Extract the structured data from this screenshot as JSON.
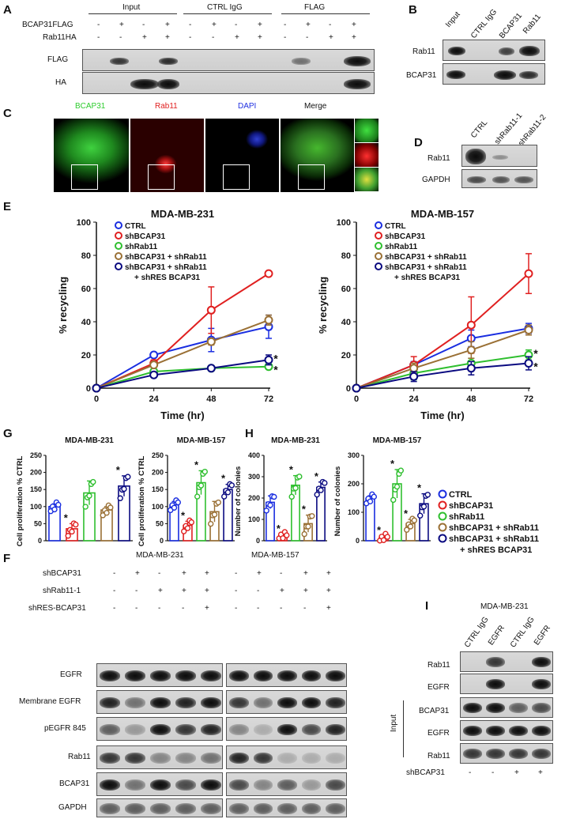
{
  "panel_letters": {
    "A": "A",
    "B": "B",
    "C": "C",
    "D": "D",
    "E": "E",
    "G": "G",
    "H": "H",
    "F": "F",
    "I": "I"
  },
  "panelA": {
    "groups": [
      "Input",
      "CTRL IgG",
      "FLAG"
    ],
    "row_labels": [
      "BCAP31FLAG",
      "Rab11HA"
    ],
    "bcap_signs": [
      "-",
      "+",
      "-",
      "+",
      "-",
      "+",
      "-",
      "+",
      "-",
      "+",
      "-",
      "+"
    ],
    "rab_signs": [
      "-",
      "-",
      "+",
      "+",
      "-",
      "-",
      "+",
      "+",
      "-",
      "-",
      "+",
      "+"
    ],
    "blot_labels": [
      "FLAG",
      "HA"
    ]
  },
  "panelB": {
    "lanes": [
      "Input",
      "CTRL IgG",
      "BCAP31",
      "Rab11"
    ],
    "blot_labels": [
      "Rab11",
      "BCAP31"
    ]
  },
  "panelC": {
    "channels": [
      "BCAP31",
      "Rab11",
      "DAPI",
      "Merge"
    ],
    "colors": [
      "#2ecc2e",
      "#e02020",
      "#2030e0",
      "#ffffff"
    ]
  },
  "panelD": {
    "lanes": [
      "CTRL",
      "shRab11-1",
      "shRab11-2"
    ],
    "blot_labels": [
      "Rab11",
      "GAPDH"
    ]
  },
  "legend_E": [
    "CTRL",
    "shBCAP31",
    "shRab11",
    "shBCAP31 + shRab11",
    "shBCAP31 + shRab11",
    "+ shRES BCAP31"
  ],
  "legend_G": [
    "CTRL",
    "shBCAP31",
    "shRab11",
    "shBCAP31 + shRab11",
    "shBCAP31 + shRab11",
    "+ shRES BCAP31"
  ],
  "colors": {
    "CTRL": "#1a2ee0",
    "shBCAP31": "#e02020",
    "shRab11": "#2fbf2f",
    "shBCAP31_shRab11": "#9a7035",
    "rescue": "#0a0a80"
  },
  "chart_data": [
    {
      "type": "line",
      "title": "MDA-MB-231",
      "xlabel": "Time (hr)",
      "ylabel": "% recycling",
      "x": [
        0,
        24,
        48,
        72
      ],
      "ylim": [
        0,
        100
      ],
      "yticks": [
        "0",
        "20",
        "40",
        "60",
        "80",
        "100"
      ],
      "xticks": [
        "0",
        "24",
        "48",
        "72"
      ],
      "series": [
        {
          "name": "CTRL",
          "values": [
            0,
            20,
            29,
            37
          ],
          "err": [
            0,
            1,
            7,
            7
          ]
        },
        {
          "name": "shBCAP31",
          "values": [
            0,
            15,
            47,
            69
          ],
          "err": [
            0,
            2,
            14,
            1
          ]
        },
        {
          "name": "shRab11",
          "values": [
            0,
            10,
            12,
            13
          ],
          "err": [
            0,
            1,
            1,
            1
          ]
        },
        {
          "name": "shBCAP31 + shRab11",
          "values": [
            0,
            14,
            28,
            41
          ],
          "err": [
            0,
            1,
            2,
            3
          ]
        },
        {
          "name": "shBCAP31 + shRab11 + shRES BCAP31",
          "values": [
            0,
            8,
            12,
            17
          ],
          "err": [
            0,
            1,
            1,
            3
          ]
        }
      ],
      "annotations": [
        "*",
        "*"
      ]
    },
    {
      "type": "line",
      "title": "MDA-MB-157",
      "xlabel": "Time (hr)",
      "ylabel": "% recycling",
      "x": [
        0,
        24,
        48,
        72
      ],
      "ylim": [
        0,
        100
      ],
      "yticks": [
        "0",
        "20",
        "40",
        "60",
        "80",
        "100"
      ],
      "xticks": [
        "0",
        "24",
        "48",
        "72"
      ],
      "series": [
        {
          "name": "CTRL",
          "values": [
            0,
            14,
            30,
            36
          ],
          "err": [
            0,
            2,
            5,
            3
          ]
        },
        {
          "name": "shBCAP31",
          "values": [
            0,
            14,
            38,
            69
          ],
          "err": [
            0,
            5,
            17,
            12
          ]
        },
        {
          "name": "shRab11",
          "values": [
            0,
            9,
            15,
            20
          ],
          "err": [
            0,
            4,
            3,
            3
          ]
        },
        {
          "name": "shBCAP31 + shRab11",
          "values": [
            0,
            12,
            23,
            35
          ],
          "err": [
            0,
            3,
            5,
            3
          ]
        },
        {
          "name": "shBCAP31 + shRab11 + shRES BCAP31",
          "values": [
            0,
            7,
            12,
            15
          ],
          "err": [
            0,
            3,
            4,
            4
          ]
        }
      ],
      "annotations": [
        "*",
        "*"
      ]
    },
    {
      "type": "bar",
      "title": "MDA-MB-231",
      "ylabel": "Cell proliferation % CTRL",
      "ylim": [
        0,
        250
      ],
      "yticks": [
        "0",
        "50",
        "100",
        "150",
        "200",
        "250"
      ],
      "values": [
        100,
        35,
        140,
        90,
        160
      ],
      "err": [
        8,
        15,
        35,
        10,
        30
      ],
      "stars": [
        "",
        "*",
        "",
        "",
        "*"
      ]
    },
    {
      "type": "bar",
      "title": "MDA-MB-157",
      "ylabel": "Cell proliferation % CTRL",
      "ylim": [
        0,
        250
      ],
      "yticks": [
        "0",
        "50",
        "100",
        "150",
        "200",
        "250"
      ],
      "values": [
        105,
        45,
        170,
        85,
        150
      ],
      "err": [
        10,
        12,
        35,
        30,
        15
      ],
      "stars": [
        "",
        "*",
        "*",
        "",
        "*"
      ]
    },
    {
      "type": "bar",
      "title": "MDA-MB-231",
      "ylabel": "Number of colonies",
      "ylim": [
        0,
        400
      ],
      "yticks": [
        "0",
        "100",
        "200",
        "300",
        "400"
      ],
      "values": [
        180,
        25,
        260,
        80,
        250
      ],
      "err": [
        30,
        5,
        45,
        40,
        25
      ],
      "stars": [
        "",
        "*",
        "*",
        "*",
        "*"
      ]
    },
    {
      "type": "bar",
      "title": "MDA-MB-157",
      "ylabel": "Number of colonies",
      "ylim": [
        0,
        300
      ],
      "yticks": [
        "0",
        "100",
        "200",
        "300"
      ],
      "values": [
        148,
        12,
        200,
        60,
        130
      ],
      "err": [
        10,
        5,
        50,
        15,
        35
      ],
      "stars": [
        "",
        "*",
        "*",
        "*",
        "*"
      ]
    }
  ],
  "panelF": {
    "cell_lines": [
      "MDA-MB-231",
      "MDA-MB-157"
    ],
    "row_labels": [
      "shBCAP31",
      "shRab11-1",
      "shRES-BCAP31"
    ],
    "signs": {
      "shBCAP31": [
        "-",
        "+",
        "-",
        "+",
        "+",
        "-",
        "+",
        "-",
        "+",
        "+"
      ],
      "shRab11": [
        "-",
        "-",
        "+",
        "+",
        "+",
        "-",
        "-",
        "+",
        "+",
        "+"
      ],
      "shRES": [
        "-",
        "-",
        "-",
        "-",
        "+",
        "-",
        "-",
        "-",
        "-",
        "+"
      ]
    },
    "blot_labels": [
      "EGFR",
      "Membrane EGFR",
      "pEGFR 845",
      "Rab11",
      "BCAP31",
      "GAPDH"
    ]
  },
  "panelI": {
    "cell_line": "MDA-MB-231",
    "lanes": [
      "CTRL IgG",
      "EGFR",
      "CTRL IgG",
      "EGFR"
    ],
    "blot_labels": [
      "Rab11",
      "EGFR",
      "BCAP31",
      "EGFR",
      "Rab11"
    ],
    "input_label": "Input",
    "row_label": "shBCAP31",
    "signs": [
      "-",
      "-",
      "+",
      "+"
    ]
  }
}
